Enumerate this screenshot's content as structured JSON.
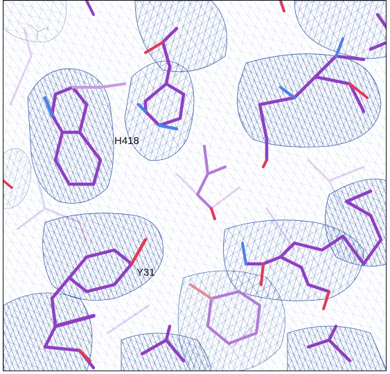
{
  "viewer": {
    "labels": [
      {
        "id": "h418",
        "text": "H418"
      },
      {
        "id": "y31",
        "text": "Y31"
      }
    ],
    "axis_triad": {
      "label": "z"
    },
    "colors": {
      "mesh": "#3a5fa8",
      "mesh_light": "#9fb1d8",
      "carbon": "#8e3fc2",
      "carbon_light": "#c79be0",
      "nitrogen": "#4c7fe6",
      "oxygen": "#e03a5a",
      "background": "#ffffff"
    }
  }
}
